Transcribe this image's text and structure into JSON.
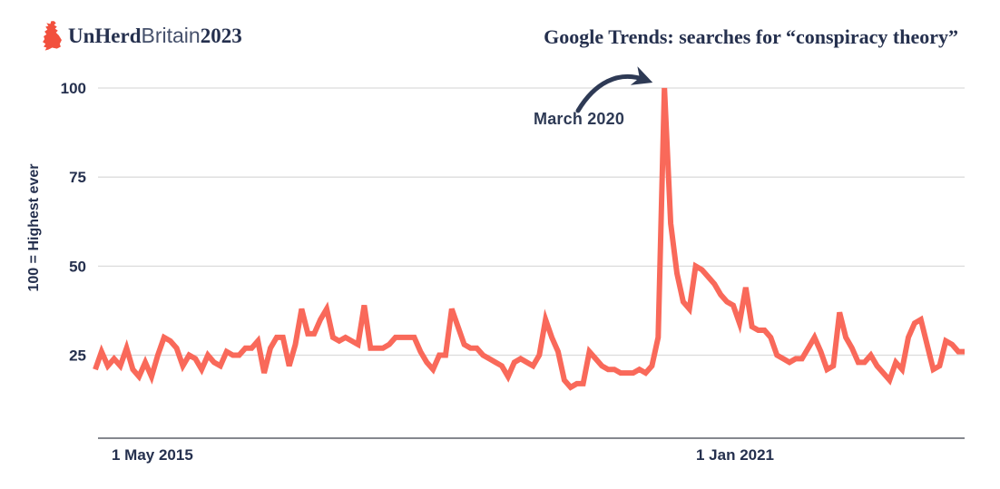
{
  "logo": {
    "icon": "britain-map-icon",
    "icon_color": "#f2503d",
    "wordmark": [
      {
        "text": "UnHerd",
        "style": "serif-bold-navy"
      },
      {
        "text": "Britain",
        "style": "sans-regular-slate"
      },
      {
        "text": "2023",
        "style": "serif-bold-navy"
      }
    ]
  },
  "colors": {
    "line": "#f9695a",
    "navy_text": "#25304e",
    "annotation": "#2e3a55",
    "gridline": "#dcdcdc",
    "axis_line": "#85888e",
    "background": "#ffffff"
  },
  "chart_data": {
    "type": "line",
    "title": "Google Trends: searches for “conspiracy theory”",
    "ylabel": "100 = Highest ever",
    "xlabel": "",
    "ylim": [
      0,
      100
    ],
    "yticks": [
      100,
      75,
      50,
      25
    ],
    "grid": true,
    "legend": "none",
    "line_color": "#f9695a",
    "series_name": "Search interest for “conspiracy theory” (100 = highest ever)",
    "x_unit": "months (approx. late 2014 to early 2023)",
    "xticks": [
      {
        "label": "1 May 2015"
      },
      {
        "label": "1 Jan 2021"
      }
    ],
    "annotations": [
      {
        "label": "March 2020",
        "points_to_value": 100
      }
    ],
    "values": [
      21,
      26,
      22,
      24,
      22,
      27,
      21,
      19,
      23,
      19,
      25,
      30,
      29,
      27,
      22,
      25,
      24,
      21,
      25,
      23,
      22,
      26,
      25,
      25,
      27,
      27,
      29,
      20,
      27,
      30,
      30,
      22,
      28,
      38,
      31,
      31,
      35,
      38,
      30,
      29,
      30,
      29,
      28,
      39,
      27,
      27,
      27,
      28,
      30,
      30,
      30,
      30,
      26,
      23,
      21,
      25,
      25,
      38,
      33,
      28,
      27,
      27,
      25,
      24,
      23,
      22,
      19,
      23,
      24,
      23,
      22,
      25,
      35,
      30,
      26,
      18,
      16,
      17,
      17,
      26,
      24,
      22,
      21,
      21,
      20,
      20,
      20,
      21,
      20,
      22,
      30,
      100,
      62,
      48,
      40,
      38,
      50,
      49,
      47,
      45,
      42,
      40,
      39,
      34,
      44,
      33,
      32,
      32,
      30,
      25,
      24,
      23,
      24,
      24,
      27,
      30,
      26,
      21,
      22,
      37,
      30,
      27,
      23,
      23,
      25,
      22,
      20,
      18,
      23,
      21,
      30,
      34,
      35,
      28,
      21,
      22,
      29,
      28,
      26,
      26
    ]
  }
}
